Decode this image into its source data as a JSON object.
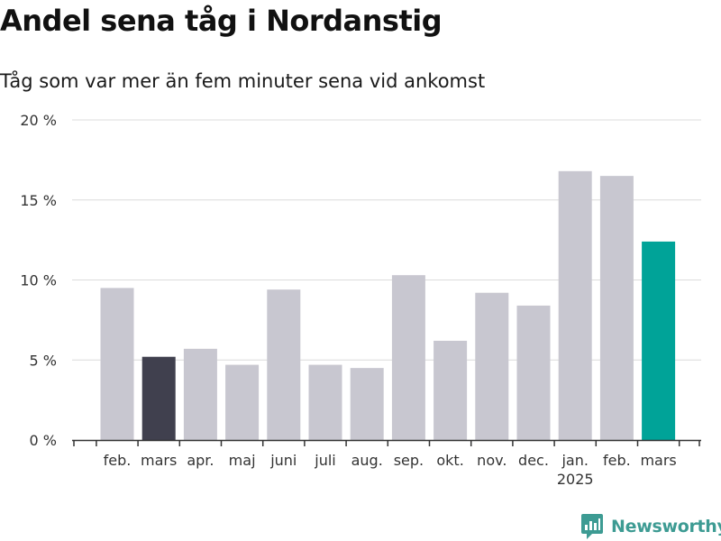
{
  "title": "Andel sena tåg i Nordanstig",
  "subtitle": "Tåg som var mer än fem minuter sena vid ankomst",
  "brand": {
    "name": "Newsworthy",
    "icon": "newsworthy-logo-icon"
  },
  "colors": {
    "default_bar": "#c8c7d0",
    "highlight_prev_year": "#40404e",
    "highlight_current": "#00a398",
    "grid": "#dcdcdc",
    "axis": "#333333",
    "text": "#333333",
    "brand": "#3d9b93"
  },
  "chart_data": {
    "type": "bar",
    "categories": [
      "feb.",
      "mars",
      "apr.",
      "maj",
      "juni",
      "juli",
      "aug.",
      "sep.",
      "okt.",
      "nov.",
      "dec.",
      "jan.",
      "feb.",
      "mars"
    ],
    "category_sublabels": [
      "",
      "",
      "",
      "",
      "",
      "",
      "",
      "",
      "",
      "",
      "",
      "2025",
      "",
      ""
    ],
    "values": [
      9.5,
      5.2,
      5.7,
      4.7,
      9.4,
      4.7,
      4.5,
      10.3,
      6.2,
      9.2,
      8.4,
      16.8,
      16.5,
      12.4
    ],
    "bar_color_keys": [
      "default_bar",
      "highlight_prev_year",
      "default_bar",
      "default_bar",
      "default_bar",
      "default_bar",
      "default_bar",
      "default_bar",
      "default_bar",
      "default_bar",
      "default_bar",
      "default_bar",
      "default_bar",
      "highlight_current"
    ],
    "ylim": [
      0,
      20
    ],
    "yticks": [
      0,
      5,
      10,
      15,
      20
    ],
    "ytick_labels": [
      "0 %",
      "5 %",
      "10 %",
      "15 %",
      "20 %"
    ],
    "xlabel": "",
    "ylabel": "",
    "grid": true
  }
}
